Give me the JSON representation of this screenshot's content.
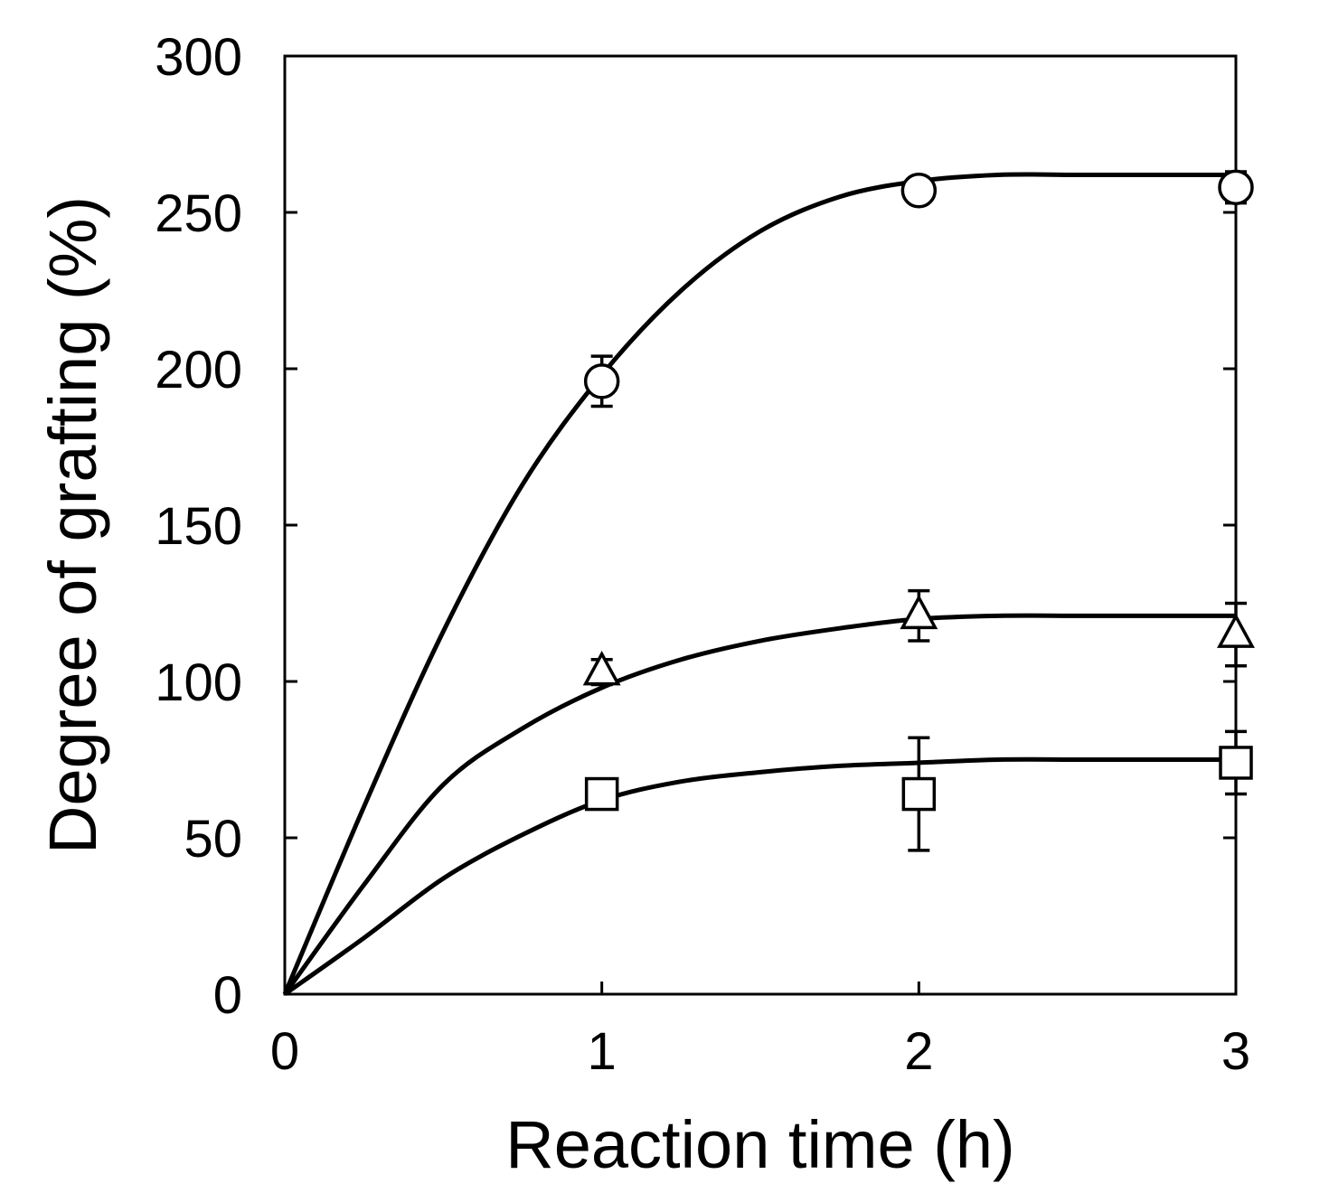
{
  "chart_data": {
    "type": "scatter",
    "title": "",
    "xlabel": "Reaction time (h)",
    "ylabel": "Degree of grafting (%)",
    "xlim": [
      0,
      3
    ],
    "ylim": [
      0,
      300
    ],
    "x_ticks": [
      0,
      1,
      2,
      3
    ],
    "y_ticks": [
      0,
      50,
      100,
      150,
      200,
      250,
      300
    ],
    "x_tick_labels": [
      "0",
      "1",
      "2",
      "3"
    ],
    "y_tick_labels": [
      "0",
      "50",
      "100",
      "150",
      "200",
      "250",
      "300"
    ],
    "grid": false,
    "legend": "none",
    "series": [
      {
        "name": "circle",
        "marker": "circle",
        "x": [
          1,
          2,
          3
        ],
        "y": [
          196,
          257,
          258
        ],
        "err": [
          8,
          4,
          5
        ],
        "fit": [
          [
            0,
            0
          ],
          [
            0.25,
            60
          ],
          [
            0.5,
            116
          ],
          [
            0.75,
            163
          ],
          [
            1,
            198
          ],
          [
            1.25,
            225
          ],
          [
            1.5,
            244
          ],
          [
            1.75,
            255
          ],
          [
            2,
            260
          ],
          [
            2.25,
            262
          ],
          [
            2.5,
            262
          ],
          [
            2.75,
            262
          ],
          [
            3,
            262
          ]
        ]
      },
      {
        "name": "triangle",
        "marker": "triangle",
        "x": [
          1,
          2,
          3
        ],
        "y": [
          103,
          121,
          115
        ],
        "err": [
          4,
          8,
          10
        ],
        "fit": [
          [
            0,
            0
          ],
          [
            0.25,
            35
          ],
          [
            0.5,
            67
          ],
          [
            0.75,
            85
          ],
          [
            1,
            98
          ],
          [
            1.25,
            107
          ],
          [
            1.5,
            113
          ],
          [
            1.75,
            117
          ],
          [
            2,
            120
          ],
          [
            2.25,
            121
          ],
          [
            2.5,
            121
          ],
          [
            2.75,
            121
          ],
          [
            3,
            121
          ]
        ]
      },
      {
        "name": "square",
        "marker": "square",
        "x": [
          1,
          2,
          3
        ],
        "y": [
          64,
          64,
          74
        ],
        "err": [
          0,
          18,
          10
        ],
        "fit": [
          [
            0,
            0
          ],
          [
            0.25,
            18
          ],
          [
            0.5,
            37
          ],
          [
            0.75,
            51
          ],
          [
            1,
            62
          ],
          [
            1.25,
            68
          ],
          [
            1.5,
            71
          ],
          [
            1.75,
            73
          ],
          [
            2,
            74
          ],
          [
            2.25,
            75
          ],
          [
            2.5,
            75
          ],
          [
            2.75,
            75
          ],
          [
            3,
            75
          ]
        ]
      }
    ]
  }
}
